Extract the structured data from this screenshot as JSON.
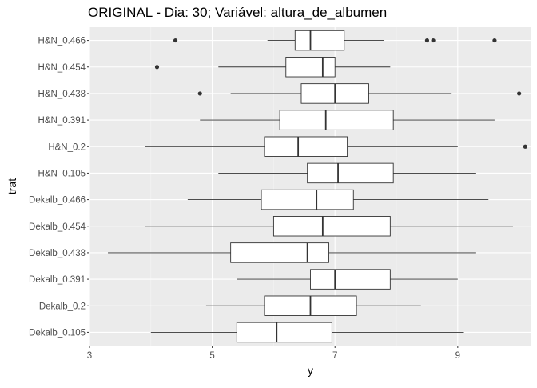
{
  "chart_data": {
    "type": "boxplot",
    "title": "ORIGINAL - Dia: 30; Variável: altura_de_albumen",
    "xlabel": "y",
    "ylabel": "trat",
    "xlim": [
      3,
      10.2
    ],
    "x_ticks": [
      3,
      5,
      7,
      9
    ],
    "grid": true,
    "legend": "none",
    "categories_top_to_bottom": [
      "H&N_0.466",
      "H&N_0.454",
      "H&N_0.438",
      "H&N_0.391",
      "H&N_0.2",
      "H&N_0.105",
      "Dekalb_0.466",
      "Dekalb_0.454",
      "Dekalb_0.438",
      "Dekalb_0.391",
      "Dekalb_0.2",
      "Dekalb_0.105"
    ],
    "boxes": [
      {
        "category": "H&N_0.466",
        "whisker_low": 5.9,
        "q1": 6.35,
        "median": 6.6,
        "q3": 7.15,
        "whisker_high": 7.8,
        "outliers": [
          4.4,
          8.5,
          8.6,
          9.6
        ]
      },
      {
        "category": "H&N_0.454",
        "whisker_low": 5.1,
        "q1": 6.2,
        "median": 6.8,
        "q3": 7.0,
        "whisker_high": 7.9,
        "outliers": [
          4.1
        ]
      },
      {
        "category": "H&N_0.438",
        "whisker_low": 5.3,
        "q1": 6.45,
        "median": 7.0,
        "q3": 7.55,
        "whisker_high": 8.9,
        "outliers": [
          4.8,
          10.0
        ]
      },
      {
        "category": "H&N_0.391",
        "whisker_low": 4.8,
        "q1": 6.1,
        "median": 6.85,
        "q3": 7.95,
        "whisker_high": 9.6,
        "outliers": []
      },
      {
        "category": "H&N_0.2",
        "whisker_low": 3.9,
        "q1": 5.85,
        "median": 6.4,
        "q3": 7.2,
        "whisker_high": 9.0,
        "outliers": [
          10.1
        ]
      },
      {
        "category": "H&N_0.105",
        "whisker_low": 5.1,
        "q1": 6.55,
        "median": 7.05,
        "q3": 7.95,
        "whisker_high": 9.3,
        "outliers": []
      },
      {
        "category": "Dekalb_0.466",
        "whisker_low": 4.6,
        "q1": 5.8,
        "median": 6.7,
        "q3": 7.3,
        "whisker_high": 9.5,
        "outliers": []
      },
      {
        "category": "Dekalb_0.454",
        "whisker_low": 3.9,
        "q1": 6.0,
        "median": 6.8,
        "q3": 7.9,
        "whisker_high": 9.9,
        "outliers": []
      },
      {
        "category": "Dekalb_0.438",
        "whisker_low": 3.3,
        "q1": 5.3,
        "median": 6.55,
        "q3": 6.9,
        "whisker_high": 9.3,
        "outliers": []
      },
      {
        "category": "Dekalb_0.391",
        "whisker_low": 5.4,
        "q1": 6.6,
        "median": 7.0,
        "q3": 7.9,
        "whisker_high": 9.0,
        "outliers": []
      },
      {
        "category": "Dekalb_0.2",
        "whisker_low": 4.9,
        "q1": 5.85,
        "median": 6.6,
        "q3": 7.35,
        "whisker_high": 8.4,
        "outliers": []
      },
      {
        "category": "Dekalb_0.105",
        "whisker_low": 4.0,
        "q1": 5.4,
        "median": 6.05,
        "q3": 6.95,
        "whisker_high": 9.1,
        "outliers": []
      }
    ],
    "colors": {
      "panel_background": "#ebebeb",
      "grid_major": "#ffffff",
      "grid_minor": "#f4f4f4",
      "box_fill": "#ffffff",
      "box_stroke": "#333333",
      "outlier": "#333333",
      "tick_text": "#4d4d4d",
      "axis_title": "#000000"
    }
  }
}
